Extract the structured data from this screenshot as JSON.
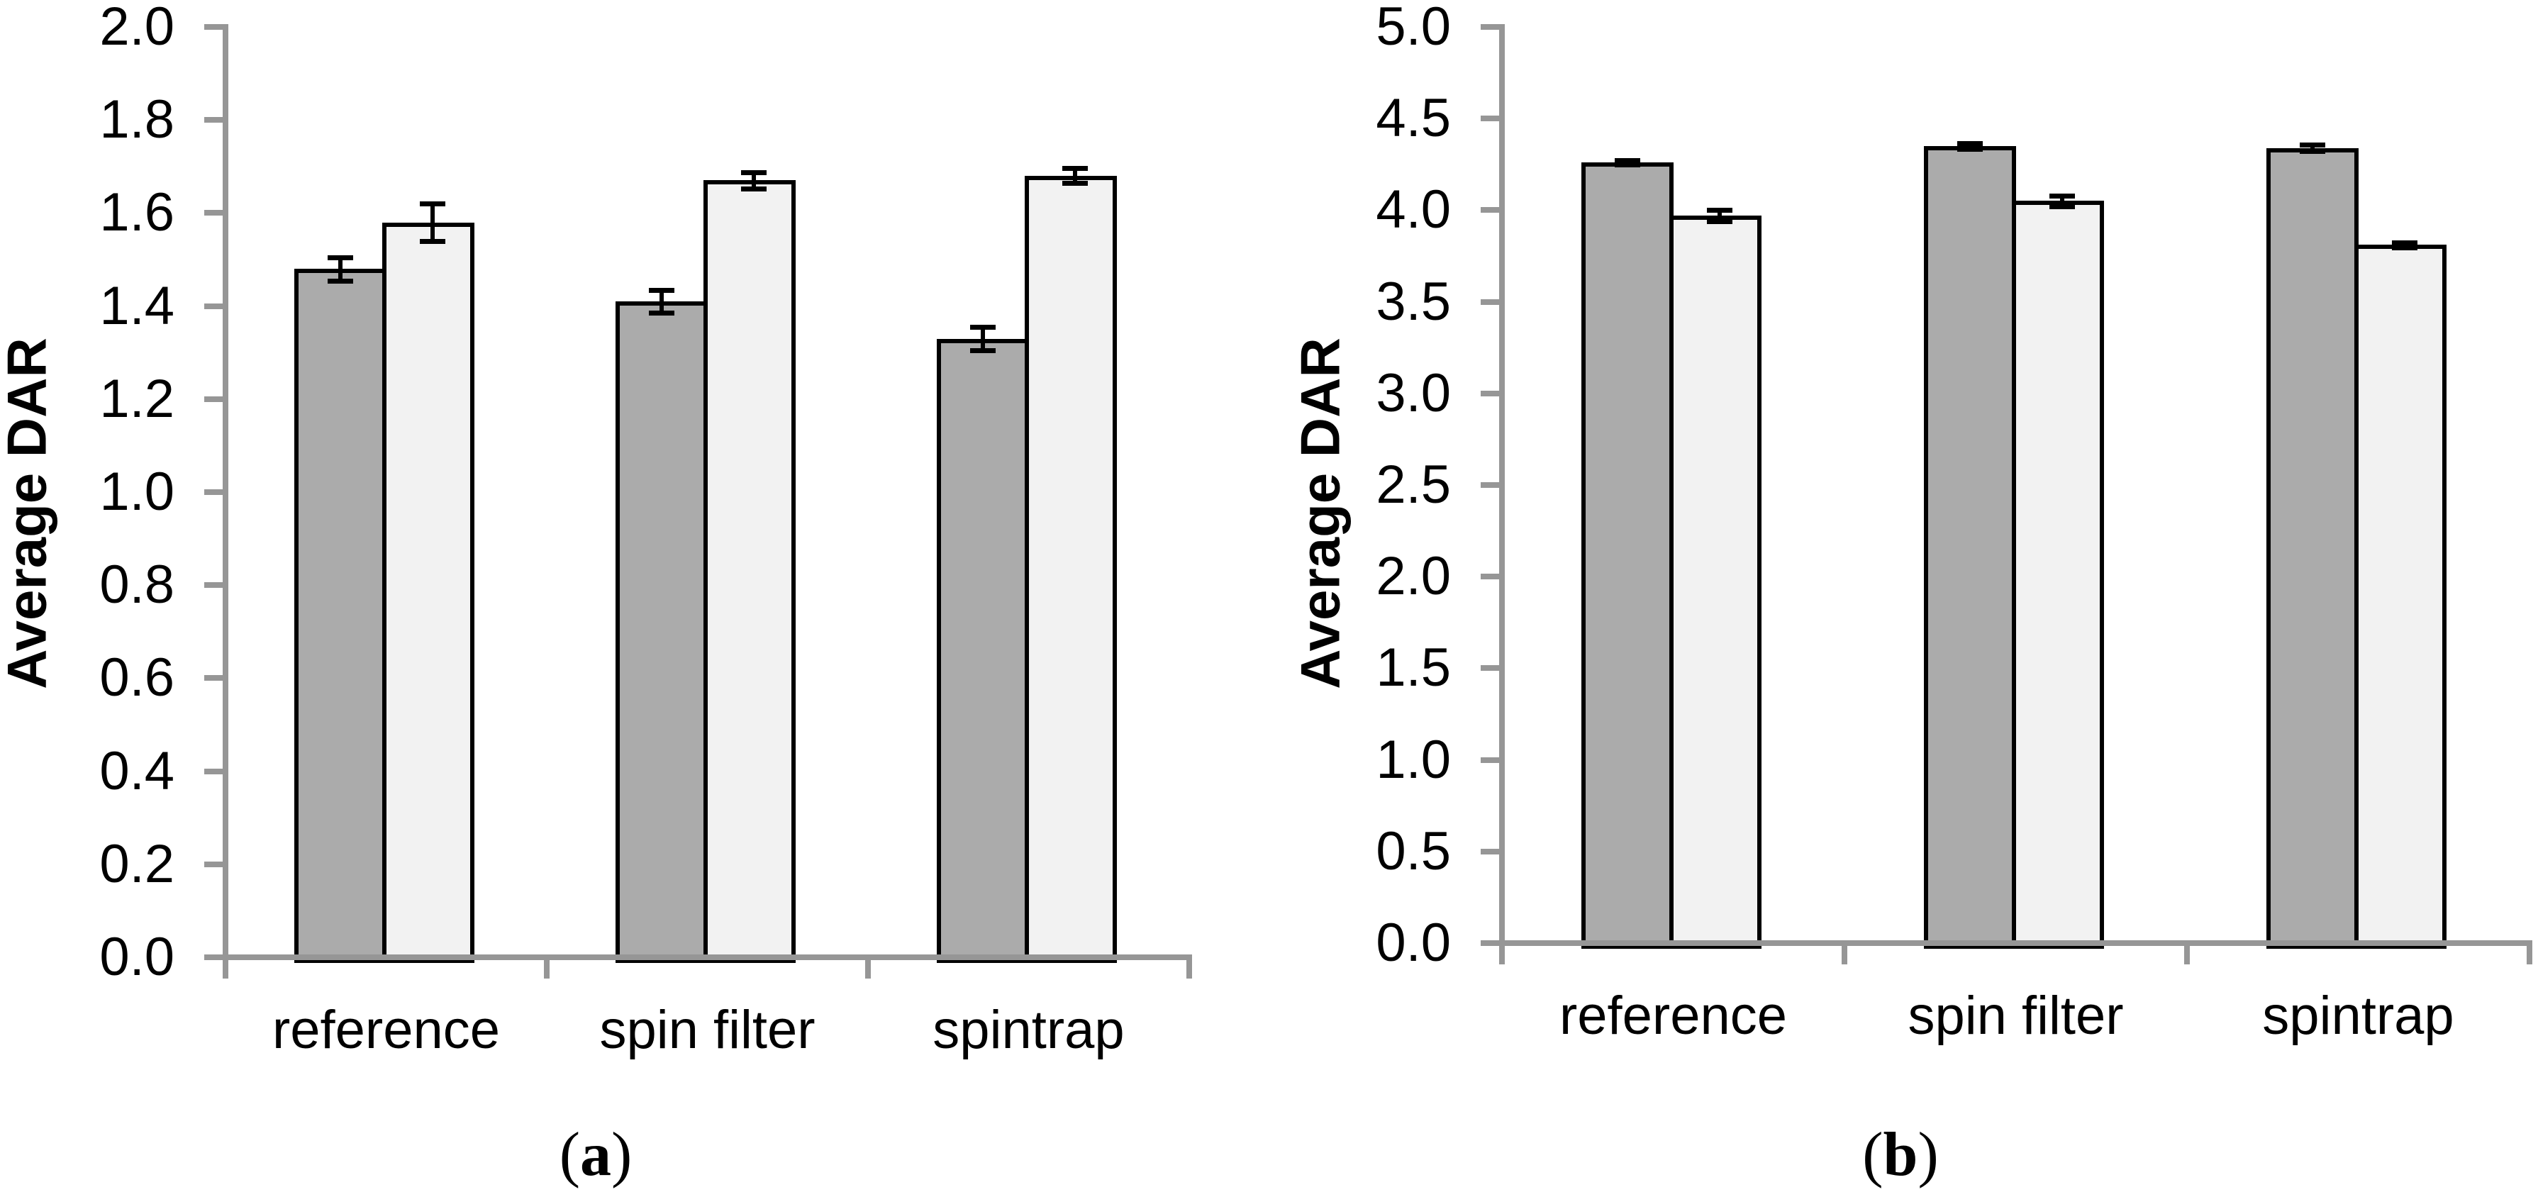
{
  "figure": {
    "background": "#ffffff",
    "y_axis_title": "Average DAR"
  },
  "colors": {
    "bar_dark_fill": "#ABABAB",
    "bar_light_fill": "#F2F2F2",
    "bar_border": "#000000",
    "axis_line": "#969696",
    "text": "#000000"
  },
  "chart_data": [
    {
      "id": "a",
      "type": "bar",
      "caption_prefix": "(",
      "caption_letter": "a",
      "caption_suffix": ")",
      "ylabel": "Average DAR",
      "xlabel": "",
      "ylim": [
        0.0,
        2.0
      ],
      "ytick_step": 0.2,
      "ytick_labels": [
        "0.0",
        "0.2",
        "0.4",
        "0.6",
        "0.8",
        "1.0",
        "1.2",
        "1.4",
        "1.6",
        "1.8",
        "2.0"
      ],
      "grid": false,
      "legend_position": "none",
      "categories": [
        "reference",
        "spin filter",
        "spintrap"
      ],
      "series": [
        {
          "name": "dark-gray-bars",
          "fill": "dark",
          "values": [
            1.48,
            1.41,
            1.33
          ],
          "errors": [
            0.025,
            0.025,
            0.025
          ]
        },
        {
          "name": "light-gray-bars",
          "fill": "light",
          "values": [
            1.58,
            1.67,
            1.68
          ],
          "errors": [
            0.04,
            0.017,
            0.016
          ]
        }
      ]
    },
    {
      "id": "b",
      "type": "bar",
      "caption_prefix": "(",
      "caption_letter": "b",
      "caption_suffix": ")",
      "ylabel": "Average DAR",
      "xlabel": "",
      "ylim": [
        0.0,
        5.0
      ],
      "ytick_step": 0.5,
      "ytick_labels": [
        "0.0",
        "0.5",
        "1.0",
        "1.5",
        "2.0",
        "2.5",
        "3.0",
        "3.5",
        "4.0",
        "4.5",
        "5.0"
      ],
      "grid": false,
      "legend_position": "none",
      "categories": [
        "reference",
        "spin filter",
        "spintrap"
      ],
      "series": [
        {
          "name": "dark-gray-bars",
          "fill": "dark",
          "values": [
            4.26,
            4.35,
            4.34
          ],
          "errors": [
            0.012,
            0.015,
            0.018
          ]
        },
        {
          "name": "light-gray-bars",
          "fill": "light",
          "values": [
            3.97,
            4.05,
            3.81
          ],
          "errors": [
            0.032,
            0.03,
            0.012
          ]
        }
      ]
    }
  ]
}
